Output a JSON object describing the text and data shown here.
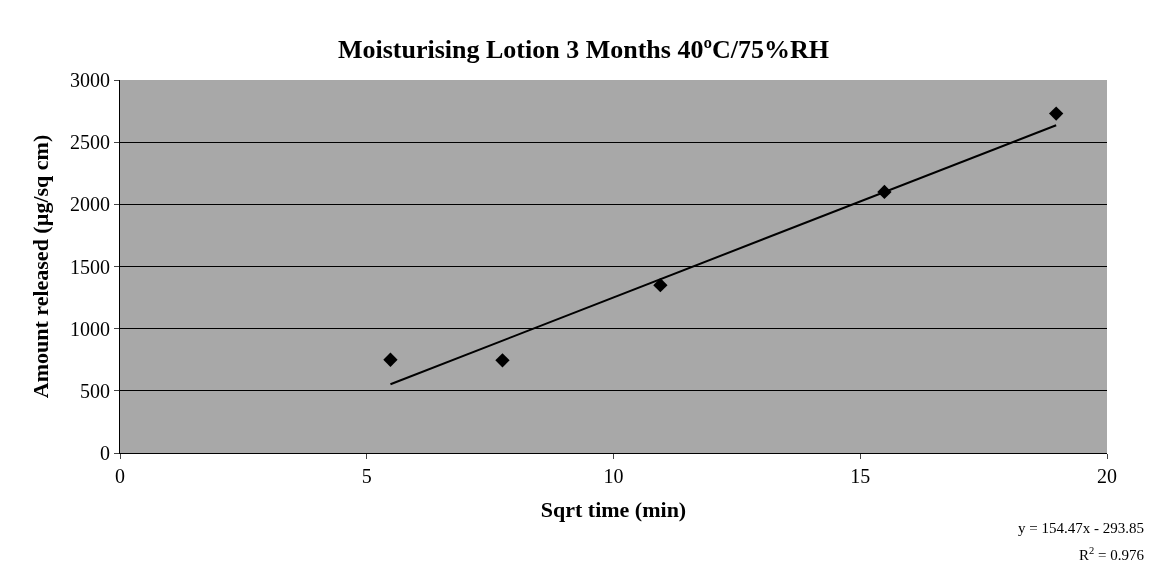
{
  "chart_data": {
    "type": "scatter",
    "title": "Moisturising Lotion 3 Months 40ºC/75%RH",
    "xlabel": "Sqrt time (min)",
    "ylabel": "Amount released (µg/sq cm)",
    "series": [
      {
        "color": "#000000",
        "marker": "diamond",
        "x": [
          5.48,
          7.75,
          10.95,
          15.49,
          18.97
        ],
        "values": [
          750,
          745,
          1350,
          2100,
          2730
        ]
      },
      {
        "type": "line",
        "color": "#000000",
        "marker": "none",
        "x": [
          5.48,
          18.97
        ],
        "values": [
          553,
          2636
        ]
      }
    ],
    "xlim": [
      0,
      20
    ],
    "xticks": [
      0,
      5,
      10,
      15,
      20
    ],
    "ylim": [
      0,
      3000
    ],
    "yticks": [
      0,
      500,
      1000,
      1500,
      2000,
      2500,
      3000
    ],
    "grid": "y",
    "legend": false,
    "annotations": [
      "y = 154.47x - 293.85",
      "R$^{2}$ = 0.976"
    ]
  }
}
